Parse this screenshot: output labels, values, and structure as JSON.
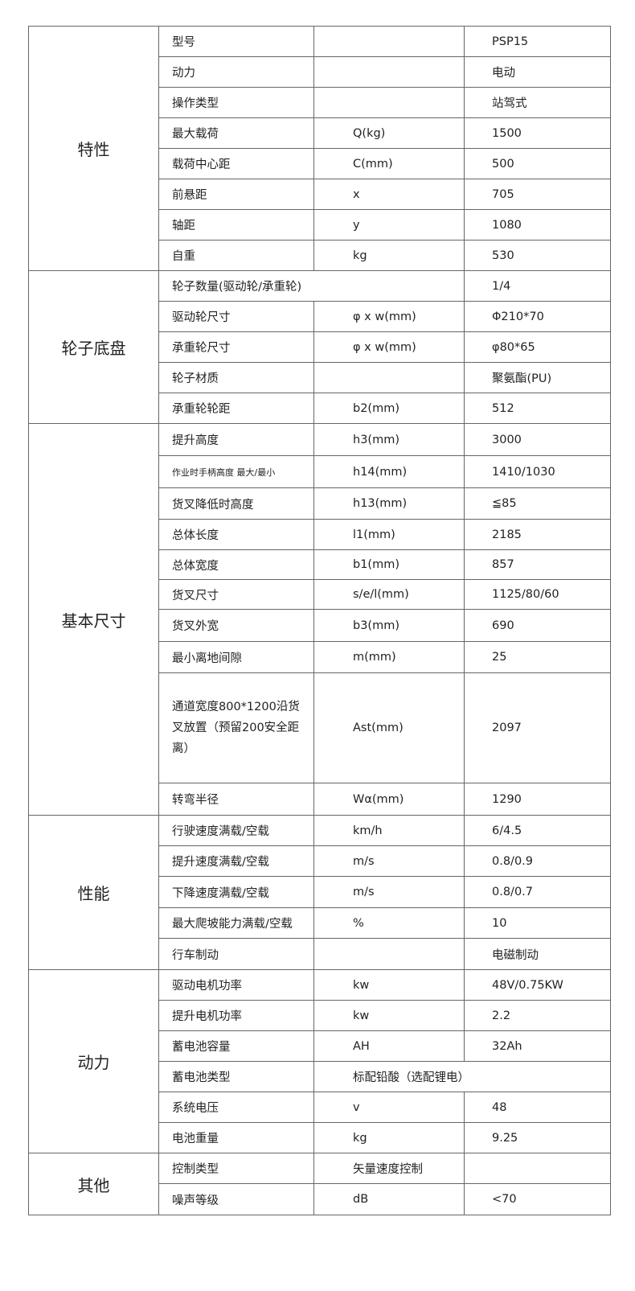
{
  "sections": [
    {
      "title": "特性",
      "rows": [
        {
          "label": "型号",
          "unit": "",
          "value": "PSP15"
        },
        {
          "label": "动力",
          "unit": "",
          "value": "电动"
        },
        {
          "label": "操作类型",
          "unit": "",
          "value": "站驾式"
        },
        {
          "label": "最大载荷",
          "unit": "Q(kg)",
          "value": "1500"
        },
        {
          "label": "载荷中心距",
          "unit": "C(mm)",
          "value": "500"
        },
        {
          "label": "前悬距",
          "unit": "x",
          "value": "705"
        },
        {
          "label": "轴距",
          "unit": "y",
          "value": "1080"
        },
        {
          "label": "自重",
          "unit": "kg",
          "value": "530"
        }
      ]
    },
    {
      "title": "轮子底盘",
      "rows": [
        {
          "label": "轮子数量(驱动轮/承重轮)",
          "value": "1/4",
          "merge": "label-unit"
        },
        {
          "label": "驱动轮尺寸",
          "unit": "φ x w(mm)",
          "value": "Φ210*70"
        },
        {
          "label": "承重轮尺寸",
          "unit": "φ x w(mm)",
          "value": "φ80*65"
        },
        {
          "label": "轮子材质",
          "unit": "",
          "value": "聚氨酯(PU)"
        },
        {
          "label": "承重轮轮距",
          "unit": "b2(mm)",
          "value": "512"
        }
      ]
    },
    {
      "title": "基本尺寸",
      "rows": [
        {
          "label": "提升高度",
          "unit": "h3(mm)",
          "value": "3000"
        },
        {
          "label": "作业时手柄高度  最大/最小",
          "unit": "h14(mm)",
          "value": "1410/1030",
          "style": "small"
        },
        {
          "label": "货叉降低时高度",
          "unit": "h13(mm)",
          "value": "≦85"
        },
        {
          "label": "总体长度",
          "unit": "l1(mm)",
          "value": "2185"
        },
        {
          "label": "总体宽度",
          "unit": "b1(mm)",
          "value": "857"
        },
        {
          "label": "货叉尺寸",
          "unit": "s/e/l(mm)",
          "value": "1125/80/60"
        },
        {
          "label": "货叉外宽",
          "unit": "b3(mm)",
          "value": "690"
        },
        {
          "label": "最小离地间隙",
          "unit": "m(mm)",
          "value": "25"
        },
        {
          "label": "通道宽度800*1200沿货叉放置（预留200安全距离）",
          "unit": "Ast(mm)",
          "value": "2097",
          "style": "wrap"
        },
        {
          "label": "转弯半径",
          "unit": "Wα(mm)",
          "value": "1290"
        }
      ]
    },
    {
      "title": "性能",
      "rows": [
        {
          "label": "行驶速度满载/空载",
          "unit": "km/h",
          "value": "6/4.5"
        },
        {
          "label": "提升速度满载/空载",
          "unit": "m/s",
          "value": "0.8/0.9"
        },
        {
          "label": "下降速度满载/空载",
          "unit": "m/s",
          "value": "0.8/0.7"
        },
        {
          "label": "最大爬坡能力满载/空载",
          "unit": "%",
          "value": "10"
        },
        {
          "label": "行车制动",
          "unit": "",
          "value": "电磁制动"
        }
      ]
    },
    {
      "title": "动力",
      "rows": [
        {
          "label": "驱动电机功率",
          "unit": "kw",
          "value": "48V/0.75KW"
        },
        {
          "label": "提升电机功率",
          "unit": "kw",
          "value": "2.2"
        },
        {
          "label": "蓄电池容量",
          "unit": "AH",
          "value": "32Ah"
        },
        {
          "label": "蓄电池类型",
          "unit": "标配铅酸（选配锂电）",
          "merge": "unit-value"
        },
        {
          "label": "系统电压",
          "unit": "v",
          "value": "48"
        },
        {
          "label": "电池重量",
          "unit": "kg",
          "value": "9.25"
        }
      ]
    },
    {
      "title": "其他",
      "rows": [
        {
          "label": "控制类型",
          "unit": "矢量速度控制",
          "value": ""
        },
        {
          "label": "噪声等级",
          "unit": "dB",
          "value": "<70"
        }
      ]
    }
  ]
}
